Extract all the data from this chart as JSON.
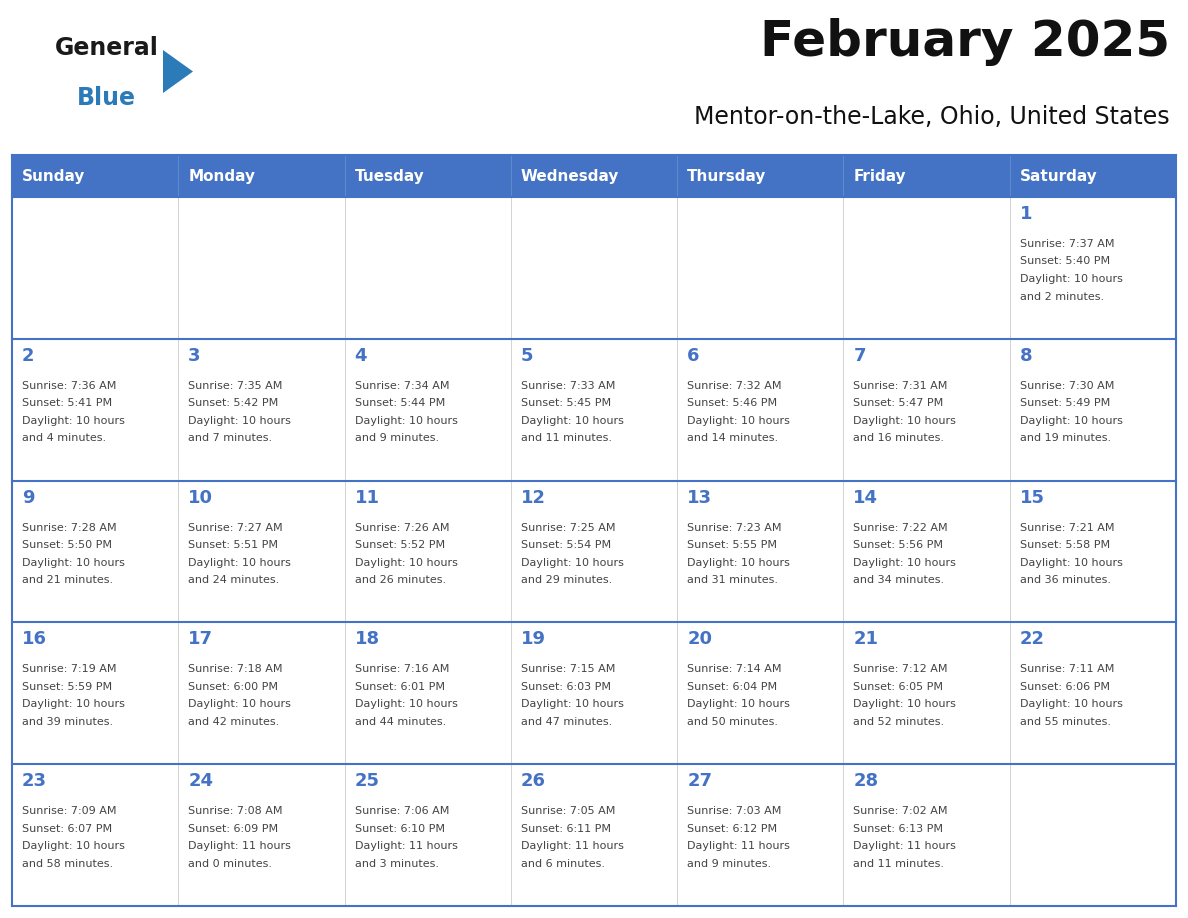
{
  "title": "February 2025",
  "subtitle": "Mentor-on-the-Lake, Ohio, United States",
  "header_bg": "#4472C4",
  "header_text_color": "#FFFFFF",
  "border_color": "#4472C4",
  "day_number_color": "#4472C4",
  "cell_text_color": "#444444",
  "days_of_week": [
    "Sunday",
    "Monday",
    "Tuesday",
    "Wednesday",
    "Thursday",
    "Friday",
    "Saturday"
  ],
  "logo_general_color": "#1a1a1a",
  "logo_blue_color": "#2B7BB9",
  "logo_triangle_color": "#2B7BB9",
  "calendar_data": [
    [
      null,
      null,
      null,
      null,
      null,
      null,
      {
        "day": 1,
        "sunrise": "7:37 AM",
        "sunset": "5:40 PM",
        "daylight": "10 hours and 2 minutes."
      }
    ],
    [
      {
        "day": 2,
        "sunrise": "7:36 AM",
        "sunset": "5:41 PM",
        "daylight": "10 hours and 4 minutes."
      },
      {
        "day": 3,
        "sunrise": "7:35 AM",
        "sunset": "5:42 PM",
        "daylight": "10 hours and 7 minutes."
      },
      {
        "day": 4,
        "sunrise": "7:34 AM",
        "sunset": "5:44 PM",
        "daylight": "10 hours and 9 minutes."
      },
      {
        "day": 5,
        "sunrise": "7:33 AM",
        "sunset": "5:45 PM",
        "daylight": "10 hours and 11 minutes."
      },
      {
        "day": 6,
        "sunrise": "7:32 AM",
        "sunset": "5:46 PM",
        "daylight": "10 hours and 14 minutes."
      },
      {
        "day": 7,
        "sunrise": "7:31 AM",
        "sunset": "5:47 PM",
        "daylight": "10 hours and 16 minutes."
      },
      {
        "day": 8,
        "sunrise": "7:30 AM",
        "sunset": "5:49 PM",
        "daylight": "10 hours and 19 minutes."
      }
    ],
    [
      {
        "day": 9,
        "sunrise": "7:28 AM",
        "sunset": "5:50 PM",
        "daylight": "10 hours and 21 minutes."
      },
      {
        "day": 10,
        "sunrise": "7:27 AM",
        "sunset": "5:51 PM",
        "daylight": "10 hours and 24 minutes."
      },
      {
        "day": 11,
        "sunrise": "7:26 AM",
        "sunset": "5:52 PM",
        "daylight": "10 hours and 26 minutes."
      },
      {
        "day": 12,
        "sunrise": "7:25 AM",
        "sunset": "5:54 PM",
        "daylight": "10 hours and 29 minutes."
      },
      {
        "day": 13,
        "sunrise": "7:23 AM",
        "sunset": "5:55 PM",
        "daylight": "10 hours and 31 minutes."
      },
      {
        "day": 14,
        "sunrise": "7:22 AM",
        "sunset": "5:56 PM",
        "daylight": "10 hours and 34 minutes."
      },
      {
        "day": 15,
        "sunrise": "7:21 AM",
        "sunset": "5:58 PM",
        "daylight": "10 hours and 36 minutes."
      }
    ],
    [
      {
        "day": 16,
        "sunrise": "7:19 AM",
        "sunset": "5:59 PM",
        "daylight": "10 hours and 39 minutes."
      },
      {
        "day": 17,
        "sunrise": "7:18 AM",
        "sunset": "6:00 PM",
        "daylight": "10 hours and 42 minutes."
      },
      {
        "day": 18,
        "sunrise": "7:16 AM",
        "sunset": "6:01 PM",
        "daylight": "10 hours and 44 minutes."
      },
      {
        "day": 19,
        "sunrise": "7:15 AM",
        "sunset": "6:03 PM",
        "daylight": "10 hours and 47 minutes."
      },
      {
        "day": 20,
        "sunrise": "7:14 AM",
        "sunset": "6:04 PM",
        "daylight": "10 hours and 50 minutes."
      },
      {
        "day": 21,
        "sunrise": "7:12 AM",
        "sunset": "6:05 PM",
        "daylight": "10 hours and 52 minutes."
      },
      {
        "day": 22,
        "sunrise": "7:11 AM",
        "sunset": "6:06 PM",
        "daylight": "10 hours and 55 minutes."
      }
    ],
    [
      {
        "day": 23,
        "sunrise": "7:09 AM",
        "sunset": "6:07 PM",
        "daylight": "10 hours and 58 minutes."
      },
      {
        "day": 24,
        "sunrise": "7:08 AM",
        "sunset": "6:09 PM",
        "daylight": "11 hours and 0 minutes."
      },
      {
        "day": 25,
        "sunrise": "7:06 AM",
        "sunset": "6:10 PM",
        "daylight": "11 hours and 3 minutes."
      },
      {
        "day": 26,
        "sunrise": "7:05 AM",
        "sunset": "6:11 PM",
        "daylight": "11 hours and 6 minutes."
      },
      {
        "day": 27,
        "sunrise": "7:03 AM",
        "sunset": "6:12 PM",
        "daylight": "11 hours and 9 minutes."
      },
      {
        "day": 28,
        "sunrise": "7:02 AM",
        "sunset": "6:13 PM",
        "daylight": "11 hours and 11 minutes."
      },
      null
    ]
  ]
}
